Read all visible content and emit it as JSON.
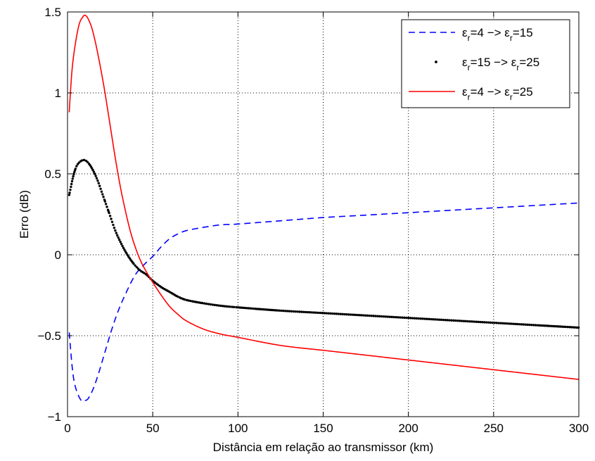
{
  "chart_data": {
    "type": "line",
    "title": "",
    "xlabel": "Distância em relação ao transmissor (km)",
    "ylabel": "Erro (dB)",
    "xlim": [
      0,
      300
    ],
    "ylim": [
      -1,
      1.5
    ],
    "xticks": [
      0,
      50,
      100,
      150,
      200,
      250,
      300
    ],
    "xtick_labels": [
      "0",
      "50",
      "100",
      "150",
      "200",
      "250",
      "300"
    ],
    "yticks": [
      -1,
      -0.5,
      0,
      0.5,
      1,
      1.5
    ],
    "ytick_labels": [
      "−1",
      "−0.5",
      "0",
      "0.5",
      "1",
      "1.5"
    ],
    "grid": true,
    "legend_position": "top-right",
    "series": [
      {
        "name": "εr=4 −> εr=15",
        "legend_parts": {
          "a": "ε",
          "a_sub": "r",
          "b": "=4 −> ε",
          "b_sub": "r",
          "c": "=15"
        },
        "style": "dashed",
        "color": "#0000ff",
        "x": [
          1,
          3,
          5,
          8,
          10,
          12,
          15,
          18,
          22,
          26,
          30,
          35,
          40,
          45,
          50,
          55,
          60,
          65,
          70,
          80,
          90,
          100,
          125,
          150,
          175,
          200,
          225,
          250,
          275,
          300
        ],
        "y": [
          -0.48,
          -0.72,
          -0.83,
          -0.9,
          -0.9,
          -0.89,
          -0.83,
          -0.74,
          -0.6,
          -0.46,
          -0.34,
          -0.22,
          -0.12,
          -0.06,
          -0.01,
          0.05,
          0.1,
          0.13,
          0.15,
          0.17,
          0.185,
          0.19,
          0.21,
          0.23,
          0.245,
          0.26,
          0.275,
          0.29,
          0.305,
          0.32
        ]
      },
      {
        "name": "εr=15 −> εr=25",
        "legend_parts": {
          "a": "ε",
          "a_sub": "r",
          "b": "=15 −> ε",
          "b_sub": "r",
          "c": "=25"
        },
        "style": "dotted-markers",
        "color": "#000000",
        "x": [
          1,
          2,
          3,
          4,
          5,
          6,
          8,
          10,
          12,
          14,
          16,
          18,
          20,
          22,
          25,
          28,
          31,
          34,
          37,
          40,
          43,
          46,
          50,
          55,
          60,
          65,
          70,
          80,
          90,
          100,
          125,
          150,
          175,
          200,
          225,
          250,
          275,
          300
        ],
        "y": [
          0.37,
          0.42,
          0.47,
          0.51,
          0.54,
          0.56,
          0.58,
          0.585,
          0.57,
          0.54,
          0.5,
          0.45,
          0.39,
          0.33,
          0.24,
          0.15,
          0.08,
          0.02,
          -0.03,
          -0.07,
          -0.1,
          -0.12,
          -0.16,
          -0.2,
          -0.23,
          -0.26,
          -0.28,
          -0.3,
          -0.315,
          -0.325,
          -0.345,
          -0.36,
          -0.375,
          -0.39,
          -0.405,
          -0.42,
          -0.435,
          -0.45
        ]
      },
      {
        "name": "εr=4 −> εr=25",
        "legend_parts": {
          "a": "ε",
          "a_sub": "r",
          "b": "=4 −> ε",
          "b_sub": "r",
          "c": "=25"
        },
        "style": "solid",
        "color": "#ff0000",
        "x": [
          1,
          2,
          3,
          5,
          7,
          9,
          10,
          11,
          12,
          14,
          16,
          18,
          20,
          22,
          25,
          28,
          31,
          34,
          37,
          40,
          43,
          46,
          50,
          55,
          60,
          65,
          70,
          80,
          90,
          100,
          125,
          150,
          175,
          200,
          225,
          250,
          275,
          300
        ],
        "y": [
          0.88,
          1.05,
          1.18,
          1.33,
          1.43,
          1.47,
          1.48,
          1.475,
          1.46,
          1.41,
          1.33,
          1.23,
          1.12,
          1.0,
          0.8,
          0.6,
          0.42,
          0.27,
          0.14,
          0.04,
          -0.04,
          -0.1,
          -0.17,
          -0.25,
          -0.32,
          -0.37,
          -0.41,
          -0.46,
          -0.49,
          -0.51,
          -0.56,
          -0.59,
          -0.62,
          -0.65,
          -0.68,
          -0.71,
          -0.74,
          -0.77
        ]
      }
    ]
  }
}
